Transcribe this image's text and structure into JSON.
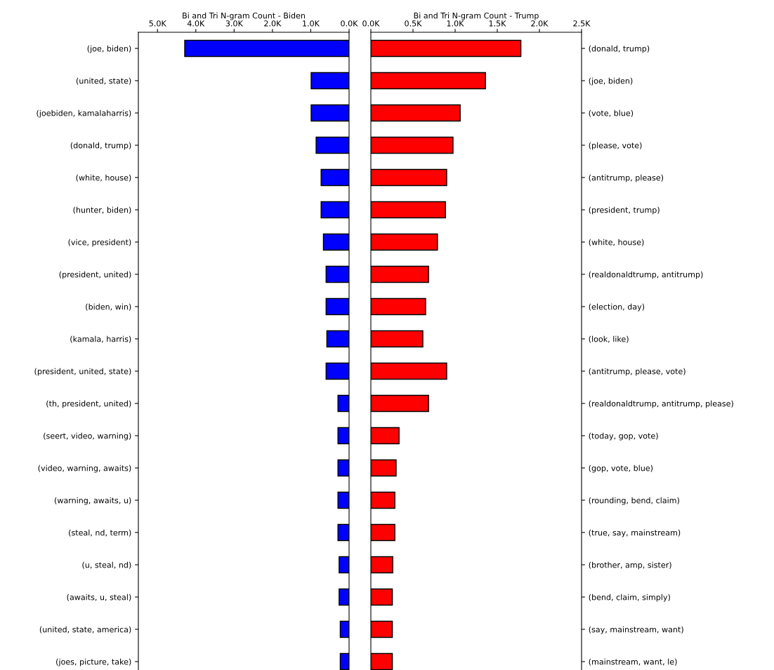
{
  "chart_data": [
    {
      "type": "bar",
      "orientation": "horizontal",
      "xlabel": "Bi and Tri N-gram Count - Biden",
      "color": "#0000ff",
      "categories": [
        "(joe, biden)",
        "(united, state)",
        "(joebiden, kamalaharris)",
        "(donald, trump)",
        "(white, house)",
        "(hunter, biden)",
        "(vice, president)",
        "(president, united)",
        "(biden, win)",
        "(kamala, harris)",
        "(president, united, state)",
        "(th, president, united)",
        "(seert, video, warning)",
        "(video, warning, awaits)",
        "(warning, awaits, u)",
        "(steal, nd, term)",
        "(u, steal, nd)",
        "(awaits, u, steal)",
        "(united, state, america)",
        "(joes, picture, take)"
      ],
      "values": [
        4290,
        990,
        990,
        860,
        730,
        730,
        670,
        600,
        600,
        580,
        600,
        290,
        290,
        290,
        290,
        290,
        260,
        260,
        230,
        230
      ],
      "xlim": [
        5500,
        0
      ],
      "xticks": [
        {
          "value": 5000,
          "label": "5.0K"
        },
        {
          "value": 4000,
          "label": "4.0K"
        },
        {
          "value": 3000,
          "label": "3.0K"
        },
        {
          "value": 2000,
          "label": "2.0K"
        },
        {
          "value": 1000,
          "label": "1.0K"
        },
        {
          "value": 0,
          "label": "0.0K"
        }
      ]
    },
    {
      "type": "bar",
      "orientation": "horizontal",
      "xlabel": "Bi and Tri N-gram Count - Trump",
      "color": "#ff0000",
      "categories": [
        "(donald, trump)",
        "(joe, biden)",
        "(vote, blue)",
        "(please, vote)",
        "(antitrump, please)",
        "(president, trump)",
        "(white, house)",
        "(realdonaldtrump, antitrump)",
        "(election, day)",
        "(look, like)",
        "(antitrump, please, vote)",
        "(realdonaldtrump, antitrump, please)",
        "(today, gop, vote)",
        "(gop, vote, blue)",
        "(rounding, bend, claim)",
        "(true, say, mainstream)",
        "(brother, amp, sister)",
        "(bend, claim, simply)",
        "(say, mainstream, want)",
        "(mainstream, want, le)"
      ],
      "values": [
        1780,
        1360,
        1060,
        975,
        900,
        885,
        790,
        685,
        650,
        617,
        900,
        685,
        335,
        300,
        285,
        285,
        260,
        255,
        255,
        255
      ],
      "xlim": [
        0,
        2500
      ],
      "xticks": [
        {
          "value": 0,
          "label": "0.0K"
        },
        {
          "value": 500,
          "label": "0.5K"
        },
        {
          "value": 1000,
          "label": "1.0K"
        },
        {
          "value": 1500,
          "label": "1.5K"
        },
        {
          "value": 2000,
          "label": "2.0K"
        },
        {
          "value": 2500,
          "label": "2.5K"
        }
      ]
    }
  ]
}
